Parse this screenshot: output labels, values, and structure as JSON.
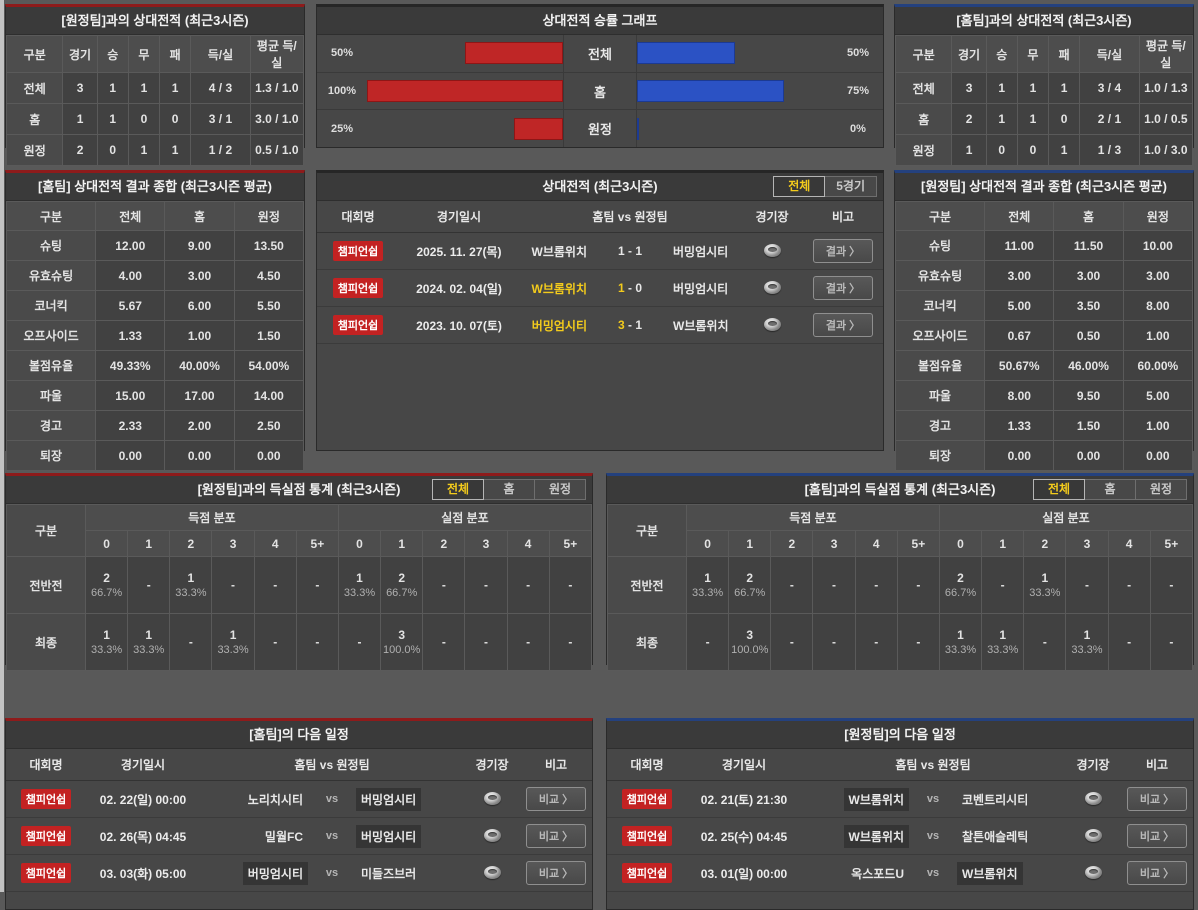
{
  "labels": {
    "vs": "vs",
    "dash": "-"
  },
  "colors": {
    "accent_red": "#bf2626",
    "accent_blue": "#2b52c4",
    "badge_red": "#c32222",
    "highlight_yellow": "#f3cb1c",
    "panel_border_red": "#8e1b1b",
    "panel_border_blue": "#24417e"
  },
  "icons": {
    "stadium": "stadium-icon"
  },
  "chart_data": {
    "type": "bar",
    "title": "상대전적 승률 그래프",
    "orientation": "horizontal-mirrored",
    "categories": [
      "전체",
      "홈",
      "원정"
    ],
    "series": [
      {
        "name": "red-left-winrate",
        "values": [
          50,
          100,
          25
        ]
      },
      {
        "name": "blue-right-winrate",
        "values": [
          50,
          75,
          0
        ]
      }
    ],
    "value_unit": "%",
    "xlim": [
      0,
      100
    ],
    "grid": false,
    "legend": false
  },
  "panels": {
    "away_h2h": {
      "title": "[원정팀]과의 상대전적 (최근3시즌)",
      "headers": [
        "구분",
        "경기",
        "승",
        "무",
        "패",
        "득/실",
        "평균 득/실"
      ],
      "rows": [
        [
          "전체",
          "3",
          "1",
          "1",
          "1",
          "4 / 3",
          "1.3 / 1.0"
        ],
        [
          "홈",
          "1",
          "1",
          "0",
          "0",
          "3 / 1",
          "3.0 / 1.0"
        ],
        [
          "원정",
          "2",
          "0",
          "1",
          "1",
          "1 / 2",
          "0.5 / 1.0"
        ]
      ]
    },
    "winrate_chart": {
      "title": "상대전적 승률 그래프",
      "rows": [
        {
          "label": "전체",
          "left_pct": "50%",
          "left_value": 50,
          "right_value": 50,
          "right_pct": "50%"
        },
        {
          "label": "홈",
          "left_pct": "100%",
          "left_value": 100,
          "right_value": 75,
          "right_pct": "75%"
        },
        {
          "label": "원정",
          "left_pct": "25%",
          "left_value": 25,
          "right_value": 0,
          "right_pct": "0%"
        }
      ]
    },
    "home_h2h": {
      "title": "[홈팀]과의 상대전적 (최근3시즌)",
      "headers": [
        "구분",
        "경기",
        "승",
        "무",
        "패",
        "득/실",
        "평균 득/실"
      ],
      "rows": [
        [
          "전체",
          "3",
          "1",
          "1",
          "1",
          "3 / 4",
          "1.0 / 1.3"
        ],
        [
          "홈",
          "2",
          "1",
          "1",
          "0",
          "2 / 1",
          "1.0 / 0.5"
        ],
        [
          "원정",
          "1",
          "0",
          "0",
          "1",
          "1 / 3",
          "1.0 / 3.0"
        ]
      ]
    },
    "home_summary": {
      "title": "[홈팀] 상대전적 결과 종합 (최근3시즌 평균)",
      "headers": [
        "구분",
        "전체",
        "홈",
        "원정"
      ],
      "rows": [
        [
          "슈팅",
          "12.00",
          "9.00",
          "13.50"
        ],
        [
          "유효슈팅",
          "4.00",
          "3.00",
          "4.50"
        ],
        [
          "코너킥",
          "5.67",
          "6.00",
          "5.50"
        ],
        [
          "오프사이드",
          "1.33",
          "1.00",
          "1.50"
        ],
        [
          "볼점유율",
          "49.33%",
          "40.00%",
          "54.00%"
        ],
        [
          "파울",
          "15.00",
          "17.00",
          "14.00"
        ],
        [
          "경고",
          "2.33",
          "2.00",
          "2.50"
        ],
        [
          "퇴장",
          "0.00",
          "0.00",
          "0.00"
        ]
      ]
    },
    "h2h_matches": {
      "title": "상대전적 (최근3시즌)",
      "tabs": [
        {
          "label": "전체",
          "selected": true
        },
        {
          "label": "5경기",
          "selected": false
        }
      ],
      "headers": [
        "대회명",
        "경기일시",
        "홈팀 vs 원정팀",
        "경기장",
        "비고"
      ],
      "button_label": "결과 〉",
      "rows": [
        {
          "league": "챔피언쉽",
          "date": "2025. 11. 27(목)",
          "home": "W브롬위치",
          "home_score": "1",
          "away_score": "1",
          "away": "버밍엄시티",
          "winner": "none"
        },
        {
          "league": "챔피언쉽",
          "date": "2024. 02. 04(일)",
          "home": "W브롬위치",
          "home_score": "1",
          "away_score": "0",
          "away": "버밍엄시티",
          "winner": "home"
        },
        {
          "league": "챔피언쉽",
          "date": "2023. 10. 07(토)",
          "home": "버밍엄시티",
          "home_score": "3",
          "away_score": "1",
          "away": "W브롬위치",
          "winner": "home"
        }
      ]
    },
    "away_summary": {
      "title": "[원정팀] 상대전적 결과 종합 (최근3시즌 평균)",
      "headers": [
        "구분",
        "전체",
        "홈",
        "원정"
      ],
      "rows": [
        [
          "슈팅",
          "11.00",
          "11.50",
          "10.00"
        ],
        [
          "유효슈팅",
          "3.00",
          "3.00",
          "3.00"
        ],
        [
          "코너킥",
          "5.00",
          "3.50",
          "8.00"
        ],
        [
          "오프사이드",
          "0.67",
          "0.50",
          "1.00"
        ],
        [
          "볼점유율",
          "50.67%",
          "46.00%",
          "60.00%"
        ],
        [
          "파울",
          "8.00",
          "9.50",
          "5.00"
        ],
        [
          "경고",
          "1.33",
          "1.50",
          "1.00"
        ],
        [
          "퇴장",
          "0.00",
          "0.00",
          "0.00"
        ]
      ]
    },
    "away_goal_stats": {
      "title": "[원정팀]과의 득실점 통계 (최근3시즌)",
      "tabs": [
        {
          "label": "전체",
          "selected": true
        },
        {
          "label": "홈",
          "selected": false
        },
        {
          "label": "원정",
          "selected": false
        }
      ],
      "col_label": "구분",
      "group_headers": [
        "득점 분포",
        "실점 분포"
      ],
      "score_cols": [
        "0",
        "1",
        "2",
        "3",
        "4",
        "5+"
      ],
      "rows": [
        {
          "label": "전반전",
          "scored": [
            [
              "2",
              "66.7%"
            ],
            null,
            [
              "1",
              "33.3%"
            ],
            null,
            null,
            null
          ],
          "conceded": [
            [
              "1",
              "33.3%"
            ],
            [
              "2",
              "66.7%"
            ],
            null,
            null,
            null,
            null
          ]
        },
        {
          "label": "최종",
          "scored": [
            [
              "1",
              "33.3%"
            ],
            [
              "1",
              "33.3%"
            ],
            null,
            [
              "1",
              "33.3%"
            ],
            null,
            null
          ],
          "conceded": [
            null,
            [
              "3",
              "100.0%"
            ],
            null,
            null,
            null,
            null
          ]
        }
      ]
    },
    "home_goal_stats": {
      "title": "[홈팀]과의 득실점 통계 (최근3시즌)",
      "tabs": [
        {
          "label": "전체",
          "selected": true
        },
        {
          "label": "홈",
          "selected": false
        },
        {
          "label": "원정",
          "selected": false
        }
      ],
      "col_label": "구분",
      "group_headers": [
        "득점 분포",
        "실점 분포"
      ],
      "score_cols": [
        "0",
        "1",
        "2",
        "3",
        "4",
        "5+"
      ],
      "rows": [
        {
          "label": "전반전",
          "scored": [
            [
              "1",
              "33.3%"
            ],
            [
              "2",
              "66.7%"
            ],
            null,
            null,
            null,
            null
          ],
          "conceded": [
            [
              "2",
              "66.7%"
            ],
            null,
            [
              "1",
              "33.3%"
            ],
            null,
            null,
            null
          ]
        },
        {
          "label": "최종",
          "scored": [
            null,
            [
              "3",
              "100.0%"
            ],
            null,
            null,
            null,
            null
          ],
          "conceded": [
            [
              "1",
              "33.3%"
            ],
            [
              "1",
              "33.3%"
            ],
            null,
            [
              "1",
              "33.3%"
            ],
            null,
            null
          ]
        }
      ]
    },
    "home_schedule": {
      "title": "[홈팀]의 다음 일정",
      "headers": [
        "대회명",
        "경기일시",
        "홈팀 vs 원정팀",
        "경기장",
        "비고"
      ],
      "button_label": "비교 〉",
      "rows": [
        {
          "league": "챔피언쉽",
          "date": "02. 22(일) 00:00",
          "home": "노리치시티",
          "away": "버밍엄시티",
          "highlight": "away"
        },
        {
          "league": "챔피언쉽",
          "date": "02. 26(목) 04:45",
          "home": "밀월FC",
          "away": "버밍엄시티",
          "highlight": "away"
        },
        {
          "league": "챔피언쉽",
          "date": "03. 03(화) 05:00",
          "home": "버밍엄시티",
          "away": "미들즈브러",
          "highlight": "home"
        }
      ]
    },
    "away_schedule": {
      "title": "[원정팀]의 다음 일정",
      "headers": [
        "대회명",
        "경기일시",
        "홈팀 vs 원정팀",
        "경기장",
        "비고"
      ],
      "button_label": "비교 〉",
      "rows": [
        {
          "league": "챔피언쉽",
          "date": "02. 21(토) 21:30",
          "home": "W브롬위치",
          "away": "코벤트리시티",
          "highlight": "home"
        },
        {
          "league": "챔피언쉽",
          "date": "02. 25(수) 04:45",
          "home": "W브롬위치",
          "away": "찰튼애슬레틱",
          "highlight": "home"
        },
        {
          "league": "챔피언쉽",
          "date": "03. 01(일) 00:00",
          "home": "옥스포드U",
          "away": "W브롬위치",
          "highlight": "away"
        }
      ]
    }
  }
}
